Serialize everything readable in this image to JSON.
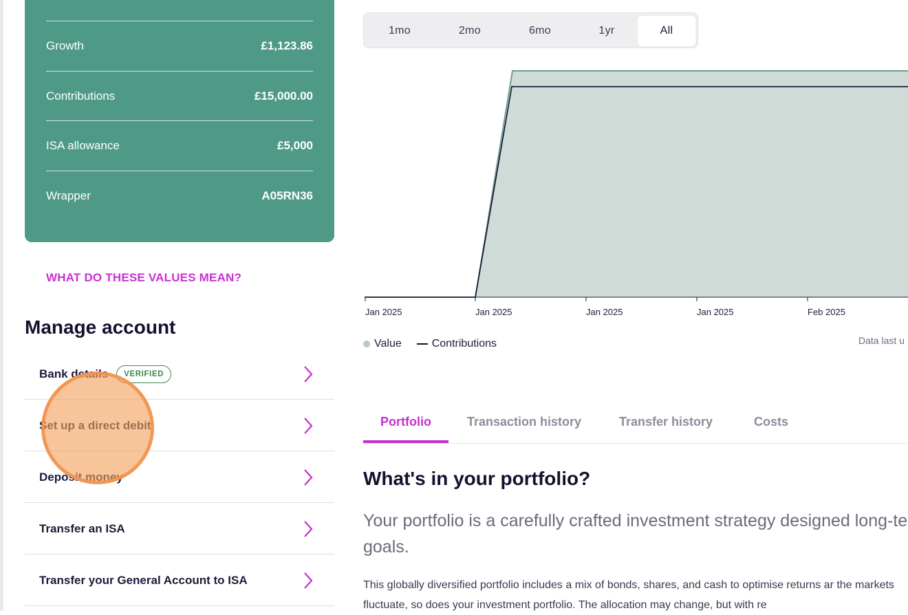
{
  "summary": {
    "rows": [
      {
        "label": "Growth",
        "value": "£1,123.86"
      },
      {
        "label": "Contributions",
        "value": "£15,000.00"
      },
      {
        "label": "ISA allowance",
        "value": "£5,000"
      },
      {
        "label": "Wrapper",
        "value": "A05RN36"
      }
    ],
    "values_link": "WHAT DO THESE VALUES MEAN?"
  },
  "manage": {
    "title": "Manage account",
    "items": [
      {
        "label": "Bank details",
        "badge": "VERIFIED"
      },
      {
        "label": "Set up a direct debit"
      },
      {
        "label": "Deposit money"
      },
      {
        "label": "Transfer an ISA"
      },
      {
        "label": "Transfer your General Account to ISA"
      }
    ]
  },
  "range_tabs": {
    "items": [
      "1mo",
      "2mo",
      "6mo",
      "1yr",
      "All"
    ],
    "active": "All"
  },
  "chart_data": {
    "type": "area",
    "x_tick_labels": [
      "Jan 2025",
      "Jan 2025",
      "Jan 2025",
      "Jan 2025",
      "Feb 2025"
    ],
    "series": [
      {
        "name": "Value",
        "color": "#cfdbd6",
        "values": [
          0,
          0,
          16123.86,
          16123.86
        ]
      },
      {
        "name": "Contributions",
        "color": "#14112e",
        "values": [
          0,
          0,
          15000,
          15000
        ]
      }
    ],
    "legend": [
      "Value",
      "Contributions"
    ],
    "legend_position": "bottom-left",
    "grid": false,
    "data_last_updated_label": "Data last u"
  },
  "content_tabs": {
    "items": [
      "Portfolio",
      "Transaction history",
      "Transfer history",
      "Costs"
    ],
    "active": "Portfolio"
  },
  "portfolio": {
    "heading": "What's in your portfolio?",
    "lead": "Your portfolio is a carefully crafted investment strategy designed long-term goals.",
    "body": "This globally diversified portfolio includes a mix of bonds, shares, and cash to optimise returns ar the markets fluctuate, so does your investment portfolio. The allocation may change, but with re"
  },
  "colors": {
    "card": "#4f9a87",
    "accent": "#c52fcf",
    "verified": "#3c8a4f",
    "chart_fill": "#cfdbd6",
    "chart_stroke": "#6f9d90"
  }
}
